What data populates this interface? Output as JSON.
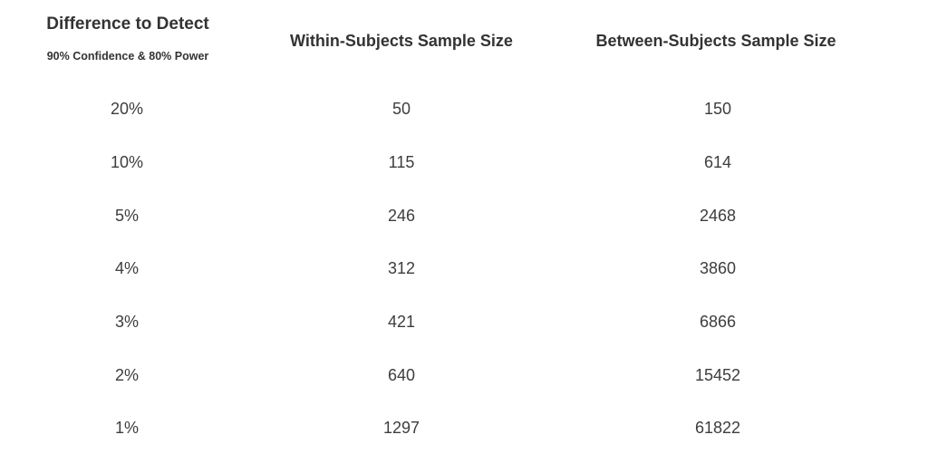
{
  "header": {
    "difference_title": "Difference to Detect",
    "difference_subtitle": "90% Confidence & 80% Power",
    "within_title": "Within-Subjects Sample Size",
    "between_title": "Between-Subjects Sample Size"
  },
  "rows": [
    {
      "difference": "20%",
      "within": "50",
      "between": "150"
    },
    {
      "difference": "10%",
      "within": "115",
      "between": "614"
    },
    {
      "difference": "5%",
      "within": "246",
      "between": "2468"
    },
    {
      "difference": "4%",
      "within": "312",
      "between": "3860"
    },
    {
      "difference": "3%",
      "within": "421",
      "between": "6866"
    },
    {
      "difference": "2%",
      "within": "640",
      "between": "15452"
    },
    {
      "difference": "1%",
      "within": "1297",
      "between": "61822"
    }
  ]
}
